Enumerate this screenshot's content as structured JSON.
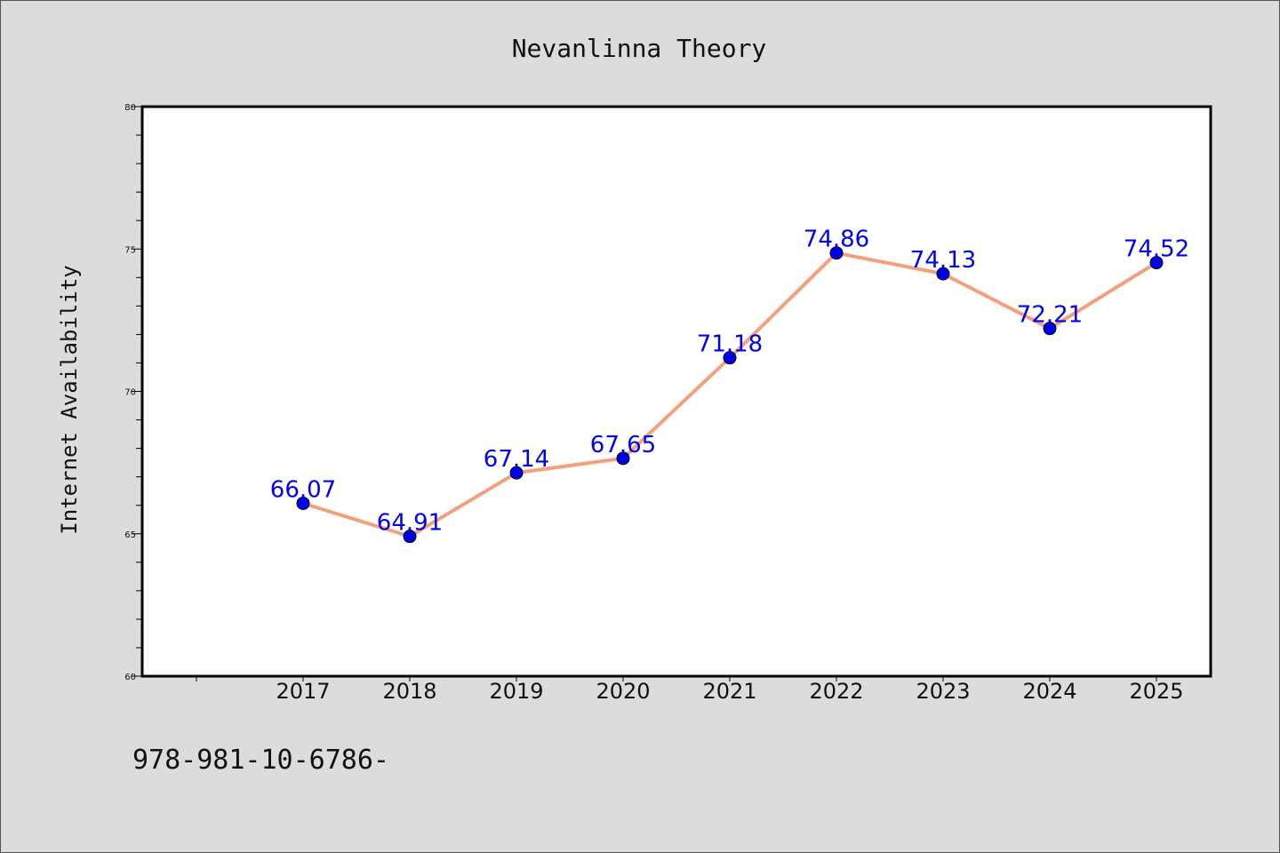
{
  "chart_data": {
    "type": "line",
    "title": "Nevanlinna Theory",
    "ylabel": "Internet Availability",
    "xlabel": "",
    "categories": [
      "2017",
      "2018",
      "2019",
      "2020",
      "2021",
      "2022",
      "2023",
      "2024",
      "2025"
    ],
    "values": [
      66.07,
      64.91,
      67.14,
      67.65,
      71.18,
      74.86,
      74.13,
      72.21,
      74.52
    ],
    "data_labels": [
      "66.07",
      "64.91",
      "67.14",
      "67.65",
      "71.18",
      "74.86",
      "74.13",
      "72.21",
      "74.52"
    ],
    "ylim": [
      60,
      80
    ],
    "yticks": [
      "60",
      "65",
      "70",
      "75",
      "80"
    ],
    "grid": false,
    "line_color": "#f4a07e",
    "marker_color": "#0000ee",
    "label_color": "#0000ee"
  },
  "footer_text": "978-981-10-6786-"
}
